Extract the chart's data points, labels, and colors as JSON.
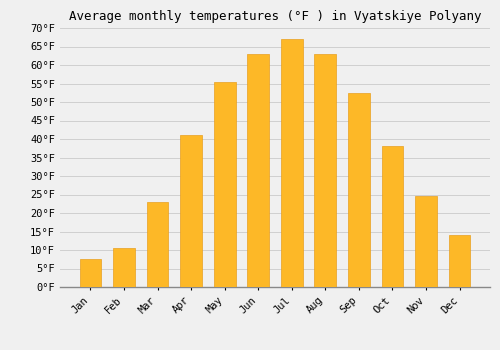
{
  "title": "Average monthly temperatures (°F ) in Vyatskiye Polyany",
  "months": [
    "Jan",
    "Feb",
    "Mar",
    "Apr",
    "May",
    "Jun",
    "Jul",
    "Aug",
    "Sep",
    "Oct",
    "Nov",
    "Dec"
  ],
  "values": [
    7.5,
    10.5,
    23,
    41,
    55.5,
    63,
    67,
    63,
    52.5,
    38,
    24.5,
    14
  ],
  "bar_color": "#FDB827",
  "bar_edge_color": "#E8A020",
  "ylim": [
    0,
    70
  ],
  "yticks": [
    0,
    5,
    10,
    15,
    20,
    25,
    30,
    35,
    40,
    45,
    50,
    55,
    60,
    65,
    70
  ],
  "background_color": "#f0f0f0",
  "grid_color": "#d0d0d0",
  "title_fontsize": 9,
  "tick_fontsize": 7.5,
  "font_family": "monospace"
}
